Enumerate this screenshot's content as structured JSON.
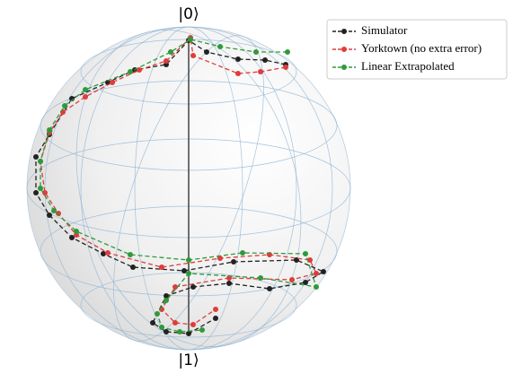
{
  "chart_data": {
    "type": "line",
    "top_label": "|0⟩",
    "bottom_label": "|1⟩",
    "xlim": [
      -180,
      180
    ],
    "ylim": [
      -180,
      180
    ],
    "series": [
      {
        "name": "Simulator",
        "color": "#222222",
        "x": [
          108,
          85,
          55,
          20,
          0,
          -25,
          -60,
          -90,
          -130,
          -155,
          -170,
          -170,
          -155,
          -130,
          -95,
          -62,
          -5,
          50,
          120,
          150,
          130,
          90,
          45,
          5,
          -25,
          -40,
          -25,
          0,
          30
        ],
        "values": [
          138,
          143,
          144,
          152,
          165,
          138,
          132,
          118,
          100,
          60,
          35,
          -5,
          -30,
          -55,
          -73,
          -88,
          -92,
          -82,
          -80,
          -93,
          -105,
          -112,
          -106,
          -110,
          -120,
          -150,
          -160,
          -162,
          -145
        ]
      },
      {
        "name": "Yorktown (no extra error)",
        "color": "#e03c3c",
        "x": [
          108,
          80,
          55,
          5,
          2,
          -25,
          -55,
          -85,
          -115,
          -140,
          -155,
          -165,
          -160,
          -145,
          -125,
          -90,
          -30,
          35,
          90,
          135,
          142,
          115,
          45,
          -15,
          -30,
          -15,
          5,
          30
        ],
        "values": [
          135,
          130,
          128,
          148,
          168,
          142,
          132,
          118,
          102,
          85,
          62,
          30,
          -5,
          -28,
          -52,
          -72,
          -88,
          -78,
          -74,
          -80,
          -95,
          -102,
          -100,
          -110,
          -135,
          -150,
          -152,
          -135
        ]
      },
      {
        "name": "Linear Extrapolated",
        "color": "#2e9a3a",
        "x": [
          110,
          75,
          35,
          2,
          -20,
          -65,
          -115,
          -138,
          -155,
          -165,
          -165,
          -150,
          -125,
          -65,
          0,
          60,
          130,
          142,
          80,
          0,
          -25,
          -35,
          -30,
          -10,
          15
        ],
        "values": [
          152,
          152,
          158,
          166,
          152,
          130,
          110,
          92,
          65,
          30,
          0,
          -25,
          -48,
          -74,
          -80,
          -72,
          -73,
          -110,
          -100,
          -95,
          -125,
          -140,
          -155,
          -160,
          -158
        ]
      }
    ]
  }
}
